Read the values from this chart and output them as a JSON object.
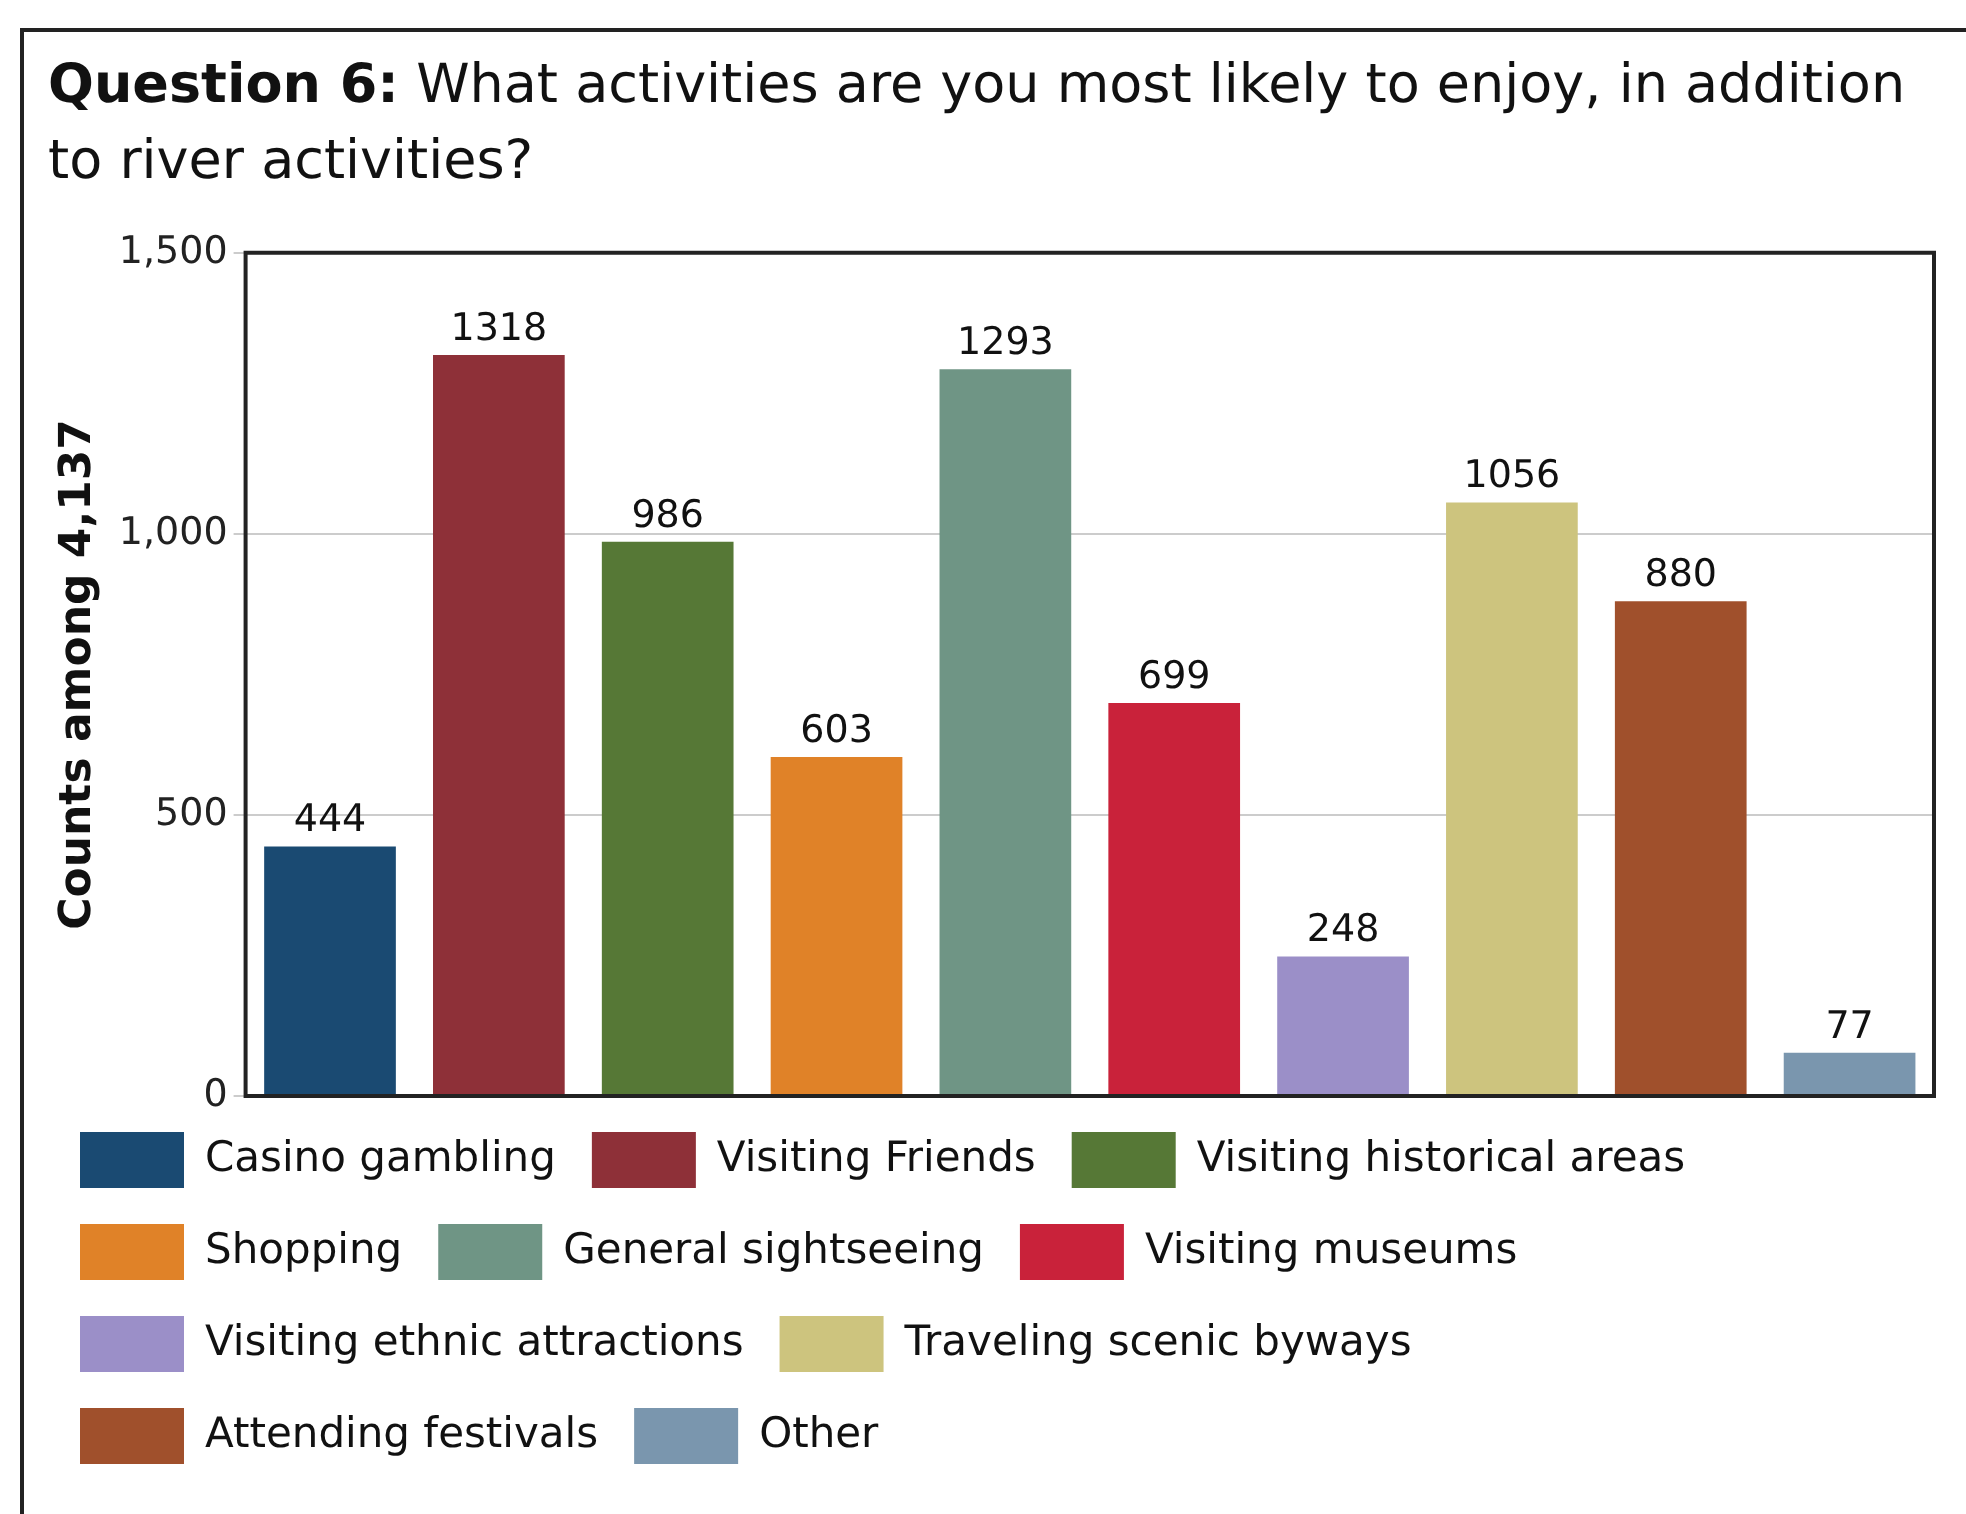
{
  "chart_data": {
    "type": "bar",
    "title": "Question 6: What activities are you most likely to enjoy, in addition to river activities?",
    "ylabel": "Counts among 4,137",
    "categories": [
      null,
      null,
      null,
      null,
      null,
      null,
      null,
      null,
      null,
      null
    ],
    "stacked": true,
    "series": [
      {
        "name": "Casino gambling",
        "color": "#1a4a72",
        "values": [
          444,
          null,
          null,
          null,
          null,
          null,
          null,
          null,
          null,
          null
        ]
      },
      {
        "name": "Visiting Friends",
        "color": "#8e3038",
        "values": [
          null,
          1318,
          null,
          null,
          null,
          null,
          null,
          null,
          null,
          null
        ]
      },
      {
        "name": "Visiting historical areas",
        "color": "#567836",
        "values": [
          null,
          null,
          986,
          null,
          null,
          null,
          null,
          null,
          null,
          null
        ]
      },
      {
        "name": "Shopping",
        "color": "#e08228",
        "values": [
          null,
          null,
          null,
          603,
          null,
          null,
          null,
          null,
          null,
          null
        ]
      },
      {
        "name": "General sightseeing",
        "color": "#6f9585",
        "values": [
          null,
          null,
          null,
          null,
          1293,
          null,
          null,
          null,
          null,
          null
        ]
      },
      {
        "name": "Visiting museums",
        "color": "#c9223a",
        "values": [
          null,
          null,
          null,
          null,
          null,
          699,
          null,
          null,
          null,
          null
        ]
      },
      {
        "name": "Visiting ethnic attractions",
        "color": "#9b8fc8",
        "values": [
          null,
          null,
          null,
          null,
          null,
          null,
          248,
          null,
          null,
          null
        ]
      },
      {
        "name": "Traveling scenic byways",
        "color": "#cdc47e",
        "values": [
          null,
          null,
          null,
          null,
          null,
          null,
          null,
          1056,
          null,
          null
        ]
      },
      {
        "name": "Attending festivals",
        "color": "#a0502c",
        "values": [
          null,
          null,
          null,
          null,
          null,
          null,
          null,
          null,
          880,
          null
        ]
      },
      {
        "name": "Other",
        "color": "#7a96ae",
        "values": [
          null,
          null,
          null,
          null,
          null,
          null,
          null,
          null,
          null,
          77
        ]
      }
    ],
    "ylim": [
      0,
      1500
    ],
    "yticks": [
      0,
      {
        "value": 500,
        "label": "500"
      },
      {
        "value": 1000,
        "label": "1,000"
      },
      {
        "value": 1500,
        "label": "1,500"
      }
    ],
    "grid": "y",
    "data_labels": true,
    "legend": "bottom",
    "tick_labels": "y"
  }
}
